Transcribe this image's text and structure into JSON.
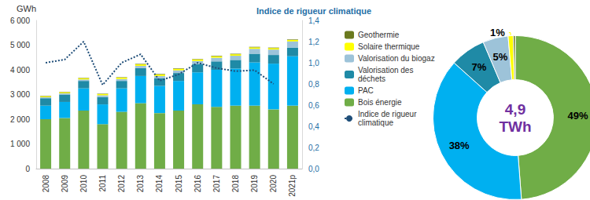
{
  "chart_data": [
    {
      "type": "bar",
      "stacked": true,
      "grid": false,
      "legend": "right",
      "y_label": "GWh",
      "y2_label": "Indice de rigueur climatique",
      "categories": [
        "2008",
        "2009",
        "2010",
        "2011",
        "2012",
        "2013",
        "2014",
        "2015",
        "2016",
        "2017",
        "2018",
        "2019",
        "2020",
        "2021p"
      ],
      "ylim": [
        0,
        6000
      ],
      "yticks": [
        0,
        {
          "value": 1000,
          "label": "1 000"
        },
        {
          "value": 2000,
          "label": "2 000"
        },
        {
          "value": 3000,
          "label": "3 000"
        },
        {
          "value": 4000,
          "label": "4 000"
        },
        {
          "value": 5000,
          "label": "5 000"
        },
        {
          "value": 6000,
          "label": "6 000"
        }
      ],
      "y2lim": [
        0,
        1.4
      ],
      "y2ticks": [
        {
          "value": 0,
          "label": "0,0"
        },
        {
          "value": 0.2,
          "label": "0,2"
        },
        {
          "value": 0.4,
          "label": "0,4"
        },
        {
          "value": 0.6,
          "label": "0,6"
        },
        {
          "value": 0.8,
          "label": "0,8"
        },
        {
          "value": 1,
          "label": "1,0"
        },
        {
          "value": 1.2,
          "label": "1,2"
        },
        {
          "value": 1.4,
          "label": "1,4"
        }
      ],
      "series": [
        {
          "name": "Bois énergie",
          "color": "#70ad47",
          "values": [
            2000,
            2050,
            2350,
            1800,
            2300,
            2650,
            2250,
            2350,
            2600,
            2500,
            2550,
            2550,
            2400,
            2550
          ]
        },
        {
          "name": "PAC",
          "color": "#00b0f0",
          "values": [
            550,
            650,
            900,
            800,
            950,
            1100,
            1100,
            1200,
            1300,
            1500,
            1500,
            1750,
            1850,
            2000
          ]
        },
        {
          "name": "Valorisation des déchets",
          "color": "#1f8aa6",
          "values": [
            300,
            300,
            300,
            300,
            300,
            320,
            300,
            320,
            330,
            340,
            350,
            350,
            350,
            350
          ]
        },
        {
          "name": "Valorisation du biogaz",
          "color": "#9dc3d9",
          "values": [
            40,
            50,
            60,
            70,
            80,
            90,
            100,
            110,
            130,
            150,
            170,
            200,
            220,
            250
          ]
        },
        {
          "name": "Solaire thermique",
          "color": "#ffff00",
          "values": [
            40,
            45,
            50,
            50,
            55,
            60,
            60,
            60,
            60,
            60,
            60,
            60,
            60,
            60
          ]
        },
        {
          "name": "Geothermie",
          "color": "#6b7a1f",
          "values": [
            15,
            15,
            15,
            15,
            15,
            20,
            20,
            20,
            20,
            20,
            20,
            20,
            20,
            20
          ]
        },
        {
          "name": "Indice de rigueur climatique",
          "type": "line",
          "axis": "y2",
          "line_style": "dotted",
          "color": "#1f4e79",
          "values": [
            1.0,
            1.03,
            1.2,
            0.79,
            1.0,
            1.08,
            0.83,
            0.89,
            1.0,
            0.95,
            0.92,
            0.93,
            0.8,
            null
          ]
        }
      ]
    },
    {
      "type": "pie",
      "center_text": [
        "4,9",
        "TWh"
      ],
      "categories": [
        "Bois énergie",
        "PAC",
        "Valorisation des déchets",
        "Valorisation du biogaz",
        "Solaire thermique",
        "Geothermie"
      ],
      "values": [
        49,
        38,
        7,
        5,
        1,
        0.4
      ],
      "value_labels": [
        "49%",
        "38%",
        "7%",
        "5%",
        "1%",
        null
      ],
      "colors": [
        "#70ad47",
        "#00b0f0",
        "#1f8aa6",
        "#9dc3d9",
        "#ffff00",
        "#6b7a1f"
      ]
    }
  ]
}
